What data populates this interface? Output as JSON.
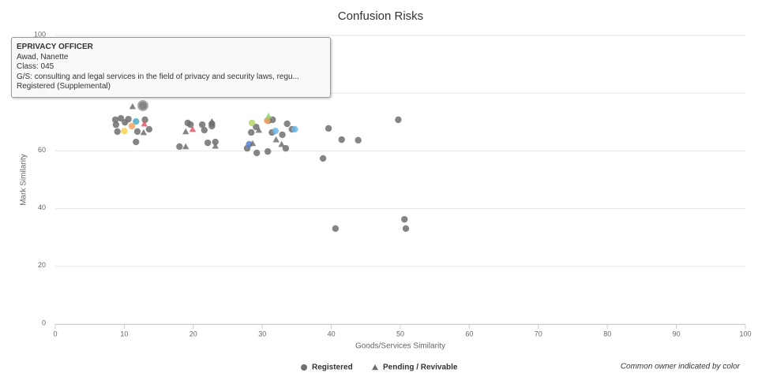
{
  "chart_data": {
    "type": "scatter",
    "title": "Confusion Risks",
    "x_label": "Goods/Services Similarity",
    "y_label": "Mark Similarity",
    "xlim": [
      0,
      100
    ],
    "ylim": [
      0,
      100
    ],
    "xticks": [
      0,
      10,
      20,
      30,
      40,
      50,
      60,
      70,
      80,
      90,
      100
    ],
    "yticks": [
      0,
      20,
      40,
      60,
      80,
      100
    ],
    "grid": true,
    "note": "Common owner indicated by color",
    "series": [
      {
        "name": "Registered",
        "marker": "circle",
        "color": "#707070",
        "x": [
          8.7,
          9.0,
          9.5,
          10.1,
          10.6,
          8.8,
          11.7,
          11.9,
          12.7,
          13.0,
          13.6,
          18.0,
          19.2,
          19.6,
          21.3,
          21.6,
          22.1,
          22.7,
          22.7,
          23.2,
          27.8,
          28.4,
          29.1,
          29.2,
          30.8,
          30.9,
          31.5,
          31.4,
          32.9,
          33.4,
          33.6,
          34.3,
          38.8,
          39.6,
          40.6,
          41.5,
          43.9,
          49.7,
          50.6,
          50.8,
          10.0,
          11.7,
          11.1,
          28.5,
          28.1,
          31.9,
          34.7,
          30.7
        ],
        "values": [
          70.8,
          66.7,
          71.3,
          69.9,
          71.0,
          69.1,
          63.1,
          66.7,
          75.7,
          70.8,
          67.5,
          61.5,
          69.7,
          69.1,
          69.1,
          67.2,
          62.8,
          69.4,
          68.6,
          63.1,
          60.9,
          66.4,
          68.3,
          59.3,
          59.8,
          70.5,
          70.8,
          66.4,
          65.6,
          60.9,
          69.4,
          67.5,
          57.4,
          67.8,
          33.1,
          63.9,
          63.7,
          70.8,
          36.3,
          33.1,
          66.9,
          70.2,
          68.6,
          69.7,
          62.3,
          66.9,
          67.5,
          70.5
        ],
        "colors": [
          "#707070",
          "#707070",
          "#707070",
          "#707070",
          "#707070",
          "#707070",
          "#707070",
          "#707070",
          "#707070",
          "#707070",
          "#707070",
          "#707070",
          "#707070",
          "#707070",
          "#707070",
          "#707070",
          "#707070",
          "#707070",
          "#707070",
          "#707070",
          "#707070",
          "#707070",
          "#707070",
          "#707070",
          "#707070",
          "#707070",
          "#707070",
          "#707070",
          "#707070",
          "#707070",
          "#707070",
          "#707070",
          "#707070",
          "#707070",
          "#707070",
          "#707070",
          "#707070",
          "#707070",
          "#707070",
          "#707070",
          "#f7d358",
          "#4dabc8",
          "#f4a460",
          "#b5d36b",
          "#5b7fd6",
          "#6bb6e8",
          "#6bb6e8",
          "#f4a460"
        ]
      },
      {
        "name": "Pending / Revivable",
        "marker": "triangle",
        "color": "#707070",
        "x": [
          11.2,
          12.8,
          18.9,
          18.9,
          22.7,
          23.2,
          28.6,
          29.5,
          32.0,
          32.8,
          19.9,
          30.9,
          12.9
        ],
        "values": [
          75.4,
          66.4,
          66.7,
          61.5,
          70.2,
          61.7,
          62.6,
          67.2,
          63.9,
          62.3,
          67.5,
          72.1,
          69.4
        ],
        "colors": [
          "#707070",
          "#707070",
          "#707070",
          "#707070",
          "#707070",
          "#707070",
          "#707070",
          "#707070",
          "#707070",
          "#707070",
          "#e05c6a",
          "#8fd16b",
          "#e05c6a"
        ]
      }
    ],
    "tooltip": {
      "title": "EPRIVACY OFFICER",
      "lines": [
        "Awad, Nanette",
        "Class: 045",
        "G/S: consulting and legal services in the field of privacy and security laws, regu...",
        "Registered (Supplemental)"
      ]
    }
  }
}
